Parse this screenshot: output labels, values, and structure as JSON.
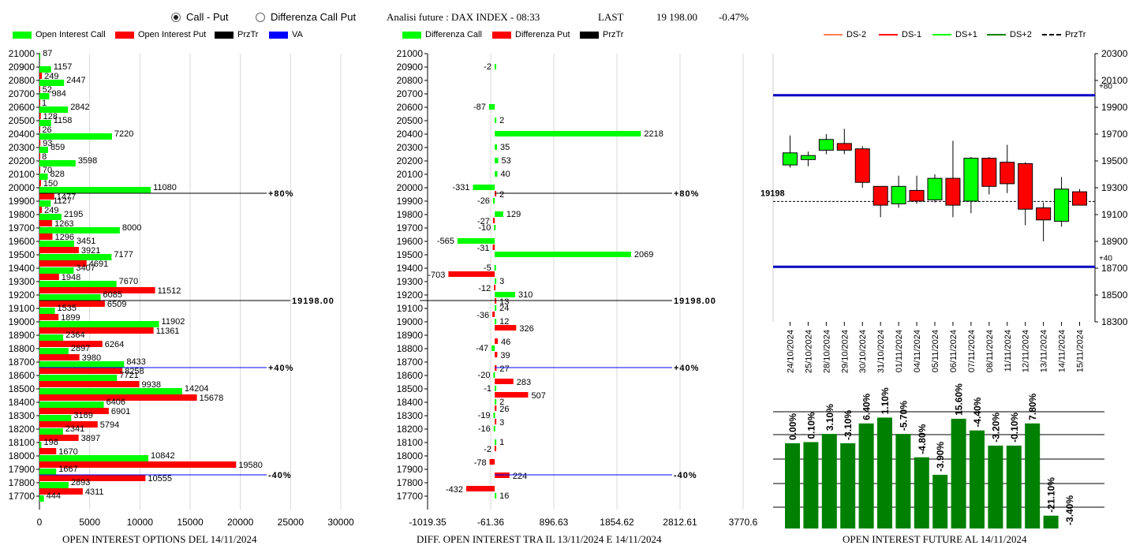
{
  "header": {
    "radio_call_put": "Call - Put",
    "radio_diff": "Differenza Call Put",
    "analysis": "Analisi future : DAX INDEX - 08:33",
    "last_label": "LAST",
    "last_value": "19 198.00",
    "change": "-0.47%"
  },
  "legend1": [
    "Open Interest Call",
    "Open Interest Put",
    "PrzTr",
    "VA"
  ],
  "legend2": [
    "Differenza Call",
    "Differenza Put",
    "PrzTr"
  ],
  "legend3": [
    "DS-2",
    "DS-1",
    "DS+1",
    "DS+2",
    "PrzTr"
  ],
  "captions": {
    "oi": "OPEN INTEREST OPTIONS DEL 14/11/2024",
    "diff": "DIFF. OPEN INTEREST TRA IL 13/11/2024 E 14/11/2024",
    "fut": "OPEN INTEREST FUTURE AL 14/11/2024"
  },
  "colors": {
    "call": "#00ff00",
    "put": "#ff0000",
    "przr": "#000000",
    "va": "#0000ff",
    "bar": "#008000",
    "ds2_minus": "#ff7f50",
    "ds1_minus": "#ff0000",
    "ds1_plus": "#00ff00",
    "ds2_plus": "#008000"
  },
  "chart_data": [
    {
      "type": "bar",
      "orientation": "horizontal",
      "categories": [
        21000,
        20900,
        20800,
        20700,
        20600,
        20500,
        20400,
        20300,
        20200,
        20100,
        20000,
        19900,
        19800,
        19700,
        19600,
        19500,
        19400,
        19300,
        19200,
        19100,
        19000,
        18900,
        18800,
        18700,
        18600,
        18500,
        18400,
        18300,
        18200,
        18100,
        18000,
        17900,
        17800,
        17700
      ],
      "series": [
        {
          "name": "Open Interest Call",
          "values": [
            87,
            1157,
            2447,
            984,
            2842,
            1158,
            7220,
            859,
            3598,
            828,
            11080,
            1127,
            2195,
            8000,
            3451,
            7177,
            3407,
            7670,
            6085,
            1535,
            11902,
            2364,
            2897,
            8433,
            7721,
            14204,
            6406,
            3169,
            2341,
            198,
            10842,
            1667,
            2893,
            444
          ]
        },
        {
          "name": "Open Interest Put",
          "values": [
            0,
            249,
            52,
            1,
            128,
            26,
            93,
            8,
            70,
            150,
            1477,
            249,
            1263,
            1296,
            3921,
            4691,
            1948,
            11512,
            6509,
            1899,
            11361,
            6264,
            3980,
            8258,
            9938,
            15678,
            6901,
            5794,
            3897,
            1670,
            19580,
            10555,
            4311,
            0
          ]
        }
      ],
      "markers": [
        {
          "label": "+80%",
          "at": 20000,
          "color": "#000000"
        },
        {
          "label": "19198.00",
          "at": 19200,
          "color": "#000000"
        },
        {
          "label": "+40%",
          "at": 18700,
          "color": "#0000ff"
        },
        {
          "label": "-40%",
          "at": 17900,
          "color": "#0000ff"
        }
      ],
      "xlim": [
        0,
        30000
      ],
      "xticks": [
        0,
        5000,
        10000,
        15000,
        20000,
        25000,
        30000
      ]
    },
    {
      "type": "bar",
      "orientation": "horizontal",
      "categories": [
        21000,
        20900,
        20800,
        20700,
        20600,
        20500,
        20400,
        20300,
        20200,
        20100,
        20000,
        19900,
        19800,
        19700,
        19600,
        19500,
        19400,
        19300,
        19200,
        19100,
        19000,
        18900,
        18800,
        18700,
        18600,
        18500,
        18400,
        18300,
        18200,
        18100,
        18000,
        17900,
        17800,
        17700
      ],
      "series": [
        {
          "name": "Differenza Call",
          "values": [
            null,
            -2,
            null,
            null,
            -87,
            2,
            2218,
            35,
            53,
            40,
            -331,
            -26,
            129,
            -10,
            -565,
            2069,
            -5,
            3,
            310,
            24,
            12,
            null,
            -47,
            null,
            -20,
            -1,
            2,
            -19,
            -16,
            1,
            null,
            null,
            null,
            16
          ]
        },
        {
          "name": "Differenza Put",
          "values": [
            null,
            null,
            null,
            null,
            null,
            null,
            null,
            null,
            null,
            null,
            2,
            null,
            -27,
            null,
            -31,
            null,
            -703,
            -12,
            13,
            -36,
            326,
            46,
            39,
            27,
            283,
            507,
            26,
            3,
            null,
            -2,
            -78,
            224,
            -432,
            null
          ]
        }
      ],
      "right_labels": [
        {
          "label": "+80%",
          "at": 20000
        },
        {
          "label": "19198.00",
          "at": 19200
        },
        {
          "label": "+40%",
          "at": 18700
        },
        {
          "label": "-40%",
          "at": 17900
        }
      ],
      "xlim": [
        -1019.35,
        3770.6
      ],
      "xticks": [
        "-1019.35",
        "-61.36",
        "896.63",
        "1854.62",
        "2812.61",
        "3770.6"
      ]
    },
    {
      "type": "candlestick",
      "dates": [
        "24/10/2024",
        "25/10/2024",
        "28/10/2024",
        "29/10/2024",
        "30/10/2024",
        "31/10/2024",
        "01/11/2024",
        "04/11/2024",
        "05/11/2024",
        "06/11/2024",
        "07/11/2024",
        "08/11/2024",
        "11/11/2024",
        "12/11/2024",
        "13/11/2024",
        "14/11/2024",
        "15/11/2024"
      ],
      "open": [
        19470,
        19510,
        19580,
        19630,
        19590,
        19310,
        19180,
        19280,
        19210,
        19370,
        19200,
        19520,
        19490,
        19480,
        19150,
        19050,
        19270
      ],
      "close": [
        19560,
        19540,
        19660,
        19580,
        19340,
        19170,
        19310,
        19200,
        19370,
        19170,
        19520,
        19310,
        19330,
        19140,
        19060,
        19290,
        19170
      ],
      "high": [
        19690,
        19570,
        19700,
        19740,
        19610,
        19310,
        19390,
        19390,
        19400,
        19650,
        19530,
        19530,
        19620,
        19490,
        19190,
        19380,
        19290
      ],
      "low": [
        19450,
        19460,
        19550,
        19550,
        19300,
        19080,
        19150,
        19180,
        19190,
        19080,
        19110,
        19250,
        19260,
        19020,
        18900,
        19010,
        19170
      ],
      "ylim": [
        18300,
        20300
      ],
      "yticks": [
        18300,
        18500,
        18700,
        18900,
        19100,
        19300,
        19500,
        19700,
        19900,
        20100,
        20300
      ],
      "current_label": "19198",
      "current_value": 19198,
      "upper_line": {
        "value": 19990,
        "label": "+80"
      },
      "lower_line": {
        "value": 18710,
        "label": "+40"
      }
    },
    {
      "type": "bar",
      "labels": [
        "0.00%",
        "0.10%",
        "3.10%",
        "-3.10%",
        "6.40%",
        "1.10%",
        "-5.70%",
        "-4.80%",
        "-3.90%",
        "15.60%",
        "-4.40%",
        "-3.20%",
        "-0.10%",
        "7.80%",
        "-21.10%",
        "-3.40%"
      ],
      "values": [
        0.0,
        0.1,
        3.1,
        -3.1,
        6.4,
        1.1,
        -5.7,
        -4.8,
        -3.9,
        15.6,
        -4.4,
        -3.2,
        -0.1,
        7.8,
        -21.1,
        -3.4
      ],
      "heights": [
        0.73,
        0.74,
        0.81,
        0.73,
        0.9,
        0.95,
        0.81,
        0.61,
        0.46,
        0.94,
        0.84,
        0.71,
        0.71,
        0.9,
        0.11,
        0
      ]
    }
  ]
}
